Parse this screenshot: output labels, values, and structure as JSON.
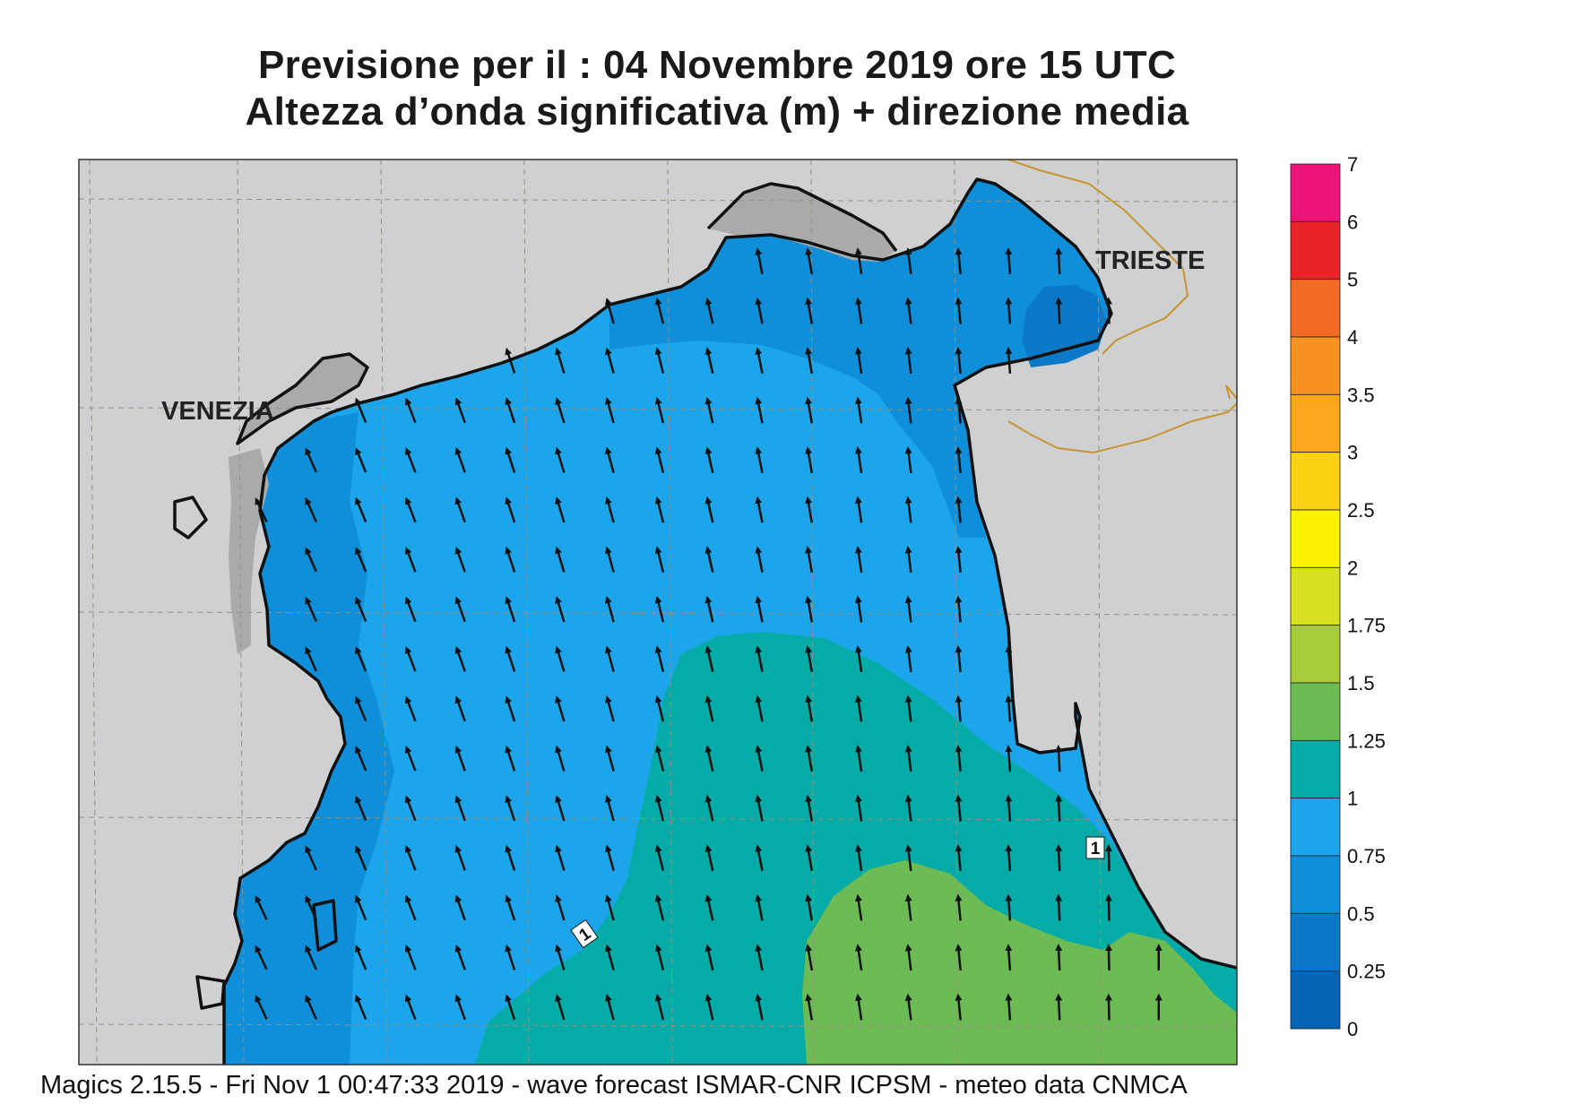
{
  "header": {
    "title_line1": "Previsione per il  :  04 Novembre  2019   ore 15 UTC",
    "title_line2": "Altezza d’onda significativa (m) + direzione media"
  },
  "map": {
    "region": "Northern Adriatic Sea",
    "city_labels": [
      "VENEZIA",
      "TRIESTE"
    ],
    "contour_labels": [
      "1",
      "1"
    ],
    "arrow_direction": "north-northwest",
    "colors": {
      "land": "#cfd0d2",
      "lagoon": "#a9aaac",
      "sea_050_075": "#0f8fd9",
      "sea_075_1": "#1ca5ea",
      "sea_1_125": "#05aca7",
      "sea_125_15": "#6dbb54",
      "sea_025_05": "#0b79c8",
      "border": "#c8942e",
      "grid": "#9a8f7a"
    }
  },
  "legend": {
    "labels": [
      "7",
      "6",
      "5",
      "4",
      "3.5",
      "3",
      "2.5",
      "2",
      "1.75",
      "1.5",
      "1.25",
      "1",
      "0.75",
      "0.5",
      "0.25",
      "0"
    ],
    "colors": [
      "#ed1478",
      "#e92429",
      "#f16b24",
      "#f7911f",
      "#faa71b",
      "#fcd10f",
      "#fdf200",
      "#d8e021",
      "#a8cb38",
      "#6dbb54",
      "#05aca7",
      "#1ca5ea",
      "#0f8fd9",
      "#0b79c8",
      "#0465b4"
    ]
  },
  "footer": {
    "text": "Magics 2.15.5 - Fri Nov  1 00:47:33 2019 - wave forecast  ISMAR-CNR  ICPSM - meteo data   CNMCA"
  }
}
